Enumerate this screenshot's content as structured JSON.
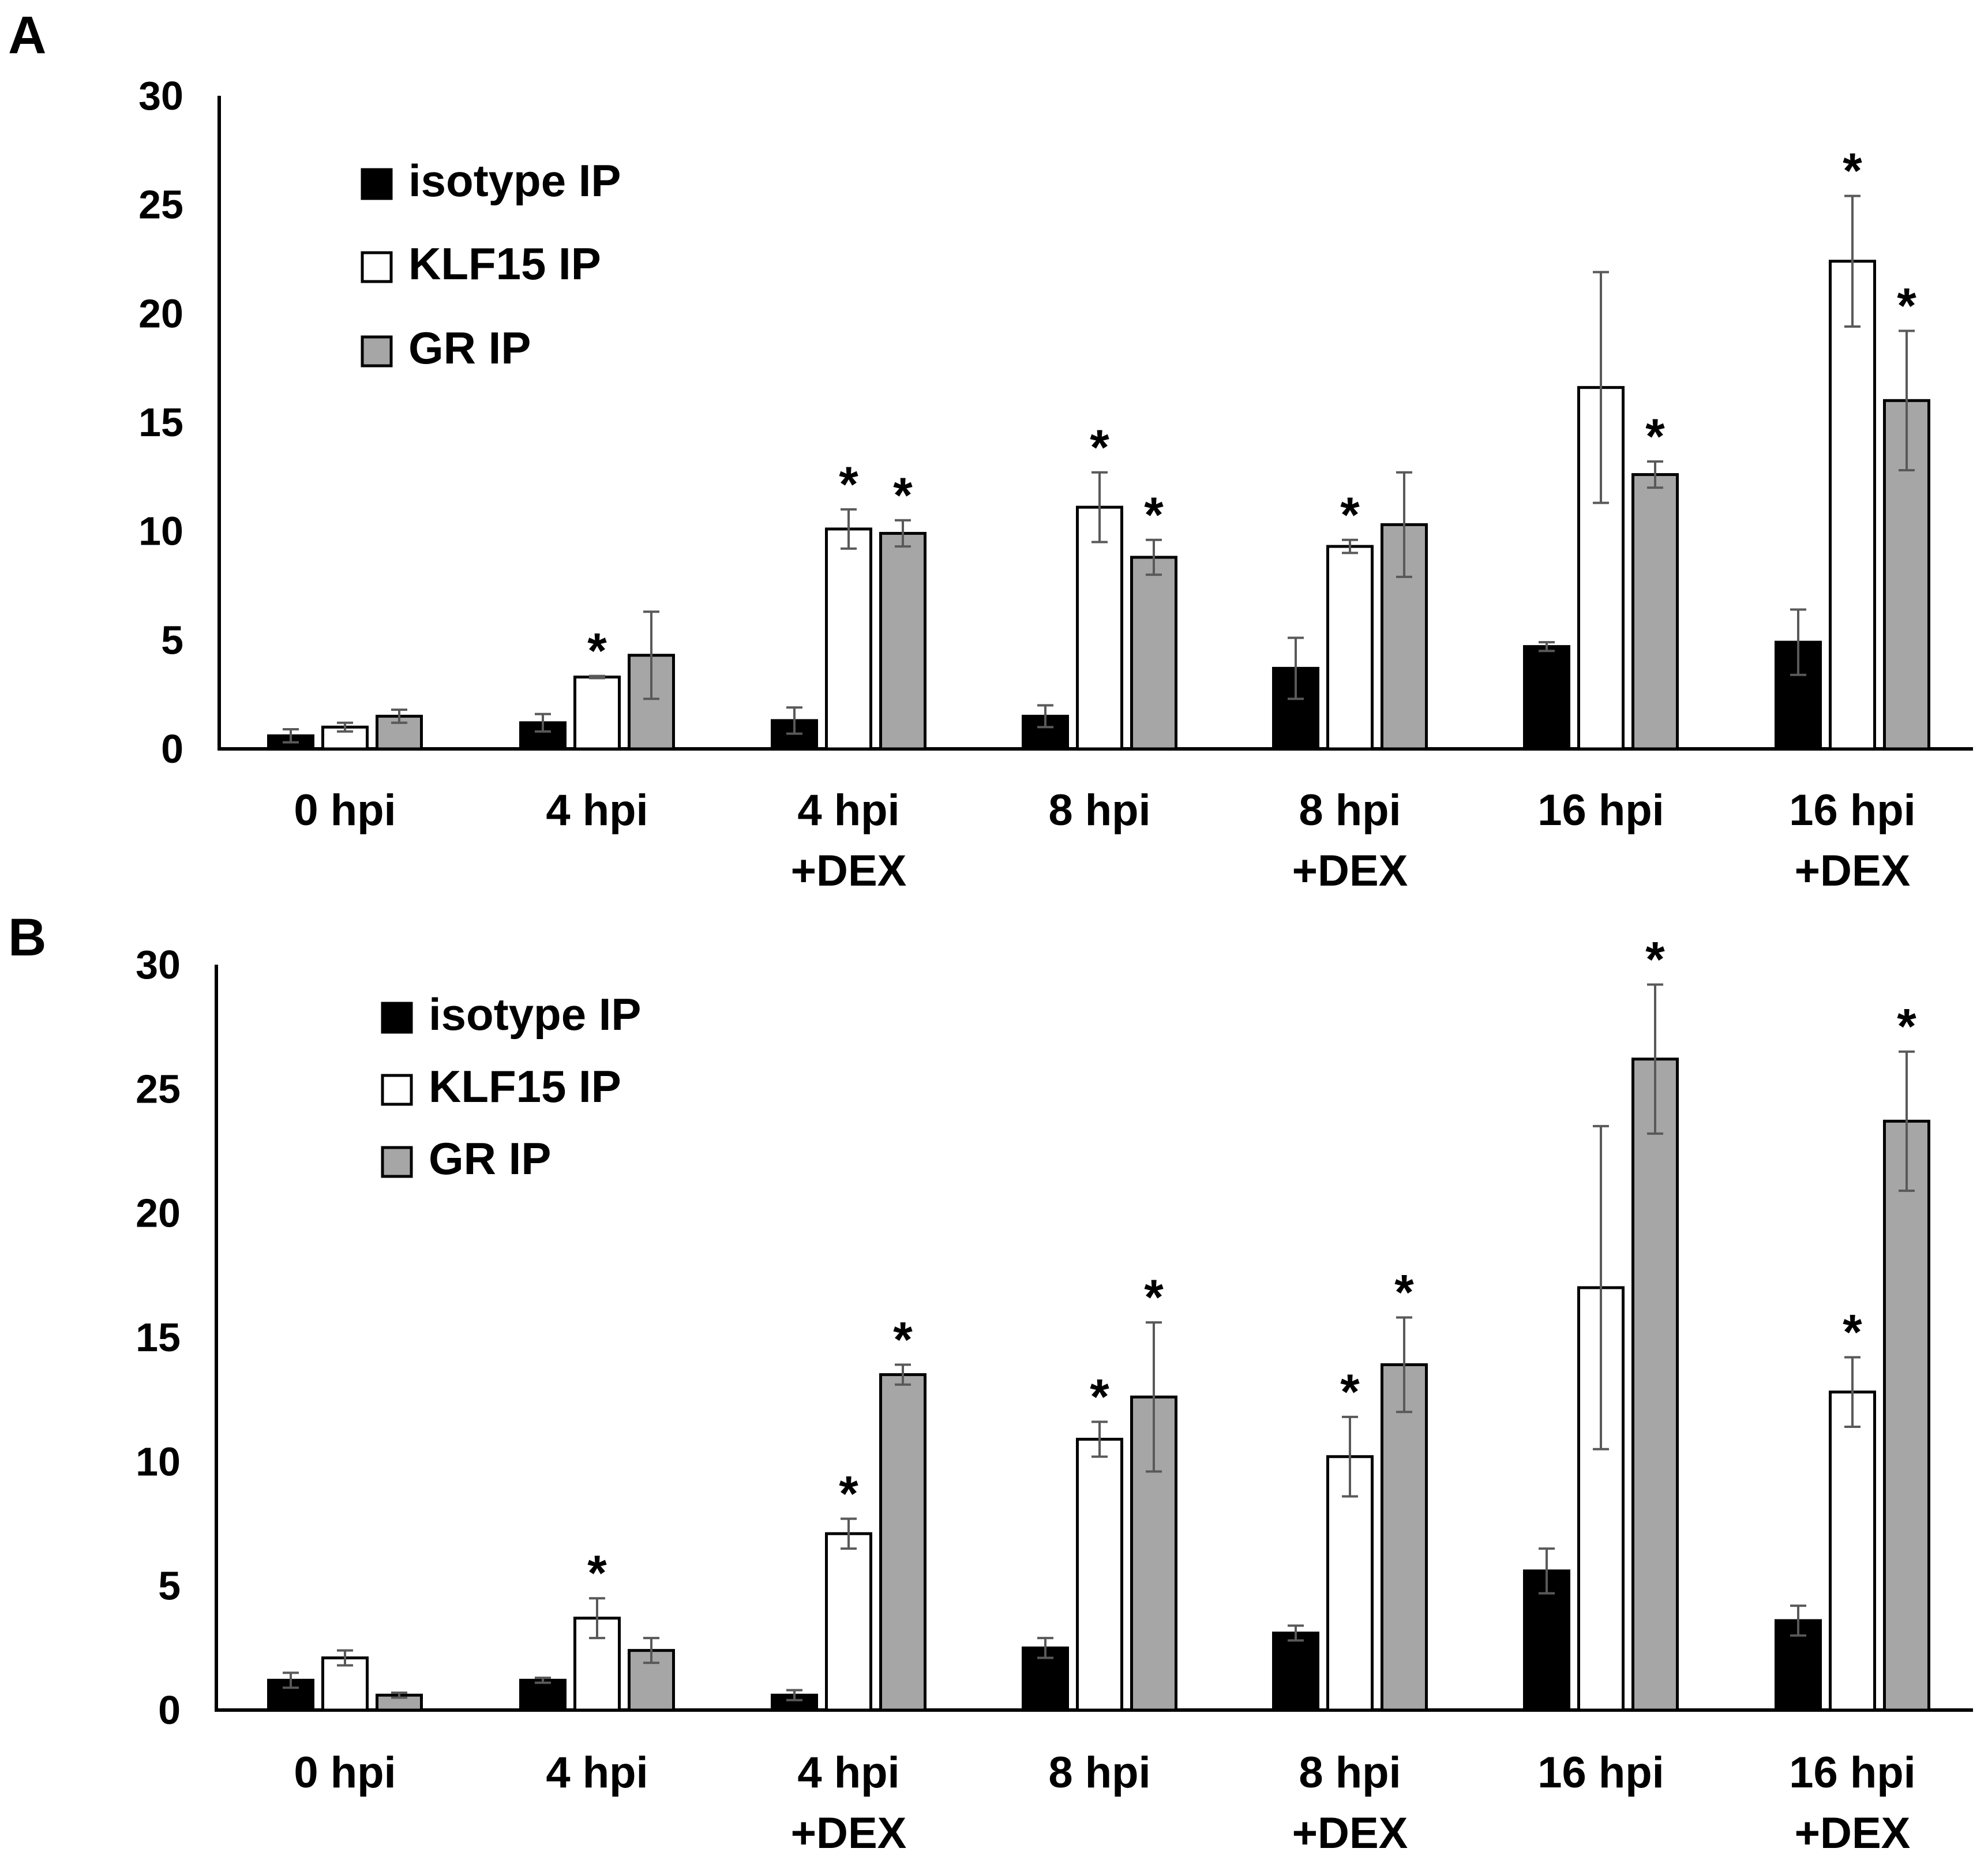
{
  "colors": {
    "isotype": "#000000",
    "klf15": "#ffffff",
    "gr": "#a6a6a6",
    "bar_stroke": "#000000",
    "error_bar": "#595959",
    "axis": "#000000"
  },
  "chart_data": [
    {
      "type": "bar",
      "panel": "A",
      "categories": [
        [
          "0 hpi"
        ],
        [
          "4 hpi"
        ],
        [
          "4 hpi",
          "+DEX"
        ],
        [
          "8 hpi"
        ],
        [
          "8 hpi",
          "+DEX"
        ],
        [
          "16 hpi"
        ],
        [
          "16 hpi",
          "+DEX"
        ]
      ],
      "ylim": [
        0,
        30
      ],
      "yticks": [
        0,
        5,
        10,
        15,
        20,
        25,
        30
      ],
      "legend_position": "top-left",
      "series": [
        {
          "name": "isotype IP",
          "key": "isotype",
          "values": [
            0.6,
            1.2,
            1.3,
            1.5,
            3.7,
            4.7,
            4.9
          ],
          "errors": [
            0.3,
            0.4,
            0.6,
            0.5,
            1.4,
            0.2,
            1.5
          ],
          "significant": [
            false,
            false,
            false,
            false,
            false,
            false,
            false
          ]
        },
        {
          "name": "KLF15 IP",
          "key": "klf15",
          "values": [
            1.0,
            3.3,
            10.1,
            11.1,
            9.3,
            16.6,
            22.4
          ],
          "errors": [
            0.2,
            0.05,
            0.9,
            1.6,
            0.3,
            5.3,
            3.0
          ],
          "significant": [
            false,
            true,
            true,
            true,
            true,
            false,
            true
          ]
        },
        {
          "name": "GR IP",
          "key": "gr",
          "values": [
            1.5,
            4.3,
            9.9,
            8.8,
            10.3,
            12.6,
            16.0
          ],
          "errors": [
            0.3,
            2.0,
            0.6,
            0.8,
            2.4,
            0.6,
            3.2
          ],
          "significant": [
            false,
            false,
            true,
            true,
            false,
            true,
            true
          ]
        }
      ]
    },
    {
      "type": "bar",
      "panel": "B",
      "categories": [
        [
          "0 hpi"
        ],
        [
          "4 hpi"
        ],
        [
          "4 hpi",
          "+DEX"
        ],
        [
          "8 hpi"
        ],
        [
          "8 hpi",
          "+DEX"
        ],
        [
          "16 hpi"
        ],
        [
          "16 hpi",
          "+DEX"
        ]
      ],
      "ylim": [
        0,
        30
      ],
      "yticks": [
        0,
        5,
        10,
        15,
        20,
        25,
        30
      ],
      "legend_position": "top-left",
      "series": [
        {
          "name": "isotype IP",
          "key": "isotype",
          "values": [
            1.2,
            1.2,
            0.6,
            2.5,
            3.1,
            5.6,
            3.6
          ],
          "errors": [
            0.3,
            0.1,
            0.2,
            0.4,
            0.3,
            0.9,
            0.6
          ],
          "significant": [
            false,
            false,
            false,
            false,
            false,
            false,
            false
          ]
        },
        {
          "name": "KLF15 IP",
          "key": "klf15",
          "values": [
            2.1,
            3.7,
            7.1,
            10.9,
            10.2,
            17.0,
            12.8
          ],
          "errors": [
            0.3,
            0.8,
            0.6,
            0.7,
            1.6,
            6.5,
            1.4
          ],
          "significant": [
            false,
            true,
            true,
            true,
            true,
            false,
            true
          ]
        },
        {
          "name": "GR IP",
          "key": "gr",
          "values": [
            0.6,
            2.4,
            13.5,
            12.6,
            13.9,
            26.2,
            23.7
          ],
          "errors": [
            0.1,
            0.5,
            0.4,
            3.0,
            1.9,
            3.0,
            2.8
          ],
          "significant": [
            false,
            false,
            true,
            true,
            true,
            true,
            true
          ]
        }
      ]
    }
  ]
}
